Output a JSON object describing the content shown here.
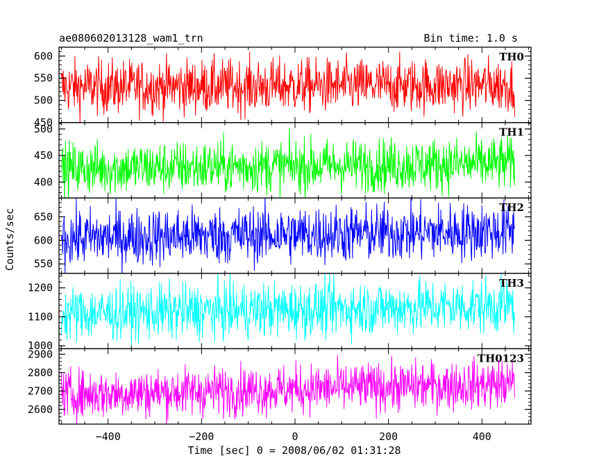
{
  "header": {
    "title": "ae080602013128_wam1_trn",
    "bin_time": "Bin time: 1.0 s"
  },
  "axes": {
    "ylabel": "Counts/sec",
    "xlabel": "Time [sec] 0 = 2008/06/02 01:31:28"
  },
  "chart_data": {
    "type": "line",
    "title": "ae080602013128_wam1_trn",
    "xlabel": "Time [sec] 0 = 2008/06/02 01:31:28",
    "ylabel": "Counts/sec",
    "xlim": [
      -505,
      505
    ],
    "x_ticks": [
      -400,
      -200,
      0,
      200,
      400
    ],
    "x_start": -500,
    "x_end": 470,
    "bin_time": 1.0,
    "grid": false,
    "series": [
      {
        "name": "TH0",
        "color": "#ff0000",
        "ylim": [
          450,
          620
        ],
        "y_ticks": [
          450,
          500,
          550,
          600
        ],
        "mean": 530,
        "amplitude": 55,
        "trend": 5
      },
      {
        "name": "TH1",
        "color": "#00ff00",
        "ylim": [
          370,
          512
        ],
        "y_ticks": [
          400,
          450,
          500
        ],
        "mean": 425,
        "amplitude": 45,
        "trend": 10
      },
      {
        "name": "TH2",
        "color": "#0000ff",
        "ylim": [
          530,
          690
        ],
        "y_ticks": [
          550,
          600,
          650
        ],
        "mean": 605,
        "amplitude": 55,
        "trend": 15
      },
      {
        "name": "TH3",
        "color": "#00ffff",
        "ylim": [
          990,
          1250
        ],
        "y_ticks": [
          1000,
          1100,
          1200
        ],
        "mean": 1110,
        "amplitude": 85,
        "trend": 30
      },
      {
        "name": "TH0123",
        "color": "#ff00ff",
        "ylim": [
          2520,
          2930
        ],
        "y_ticks": [
          2600,
          2700,
          2800,
          2900
        ],
        "mean": 2680,
        "amplitude": 120,
        "trend": 60
      }
    ]
  }
}
